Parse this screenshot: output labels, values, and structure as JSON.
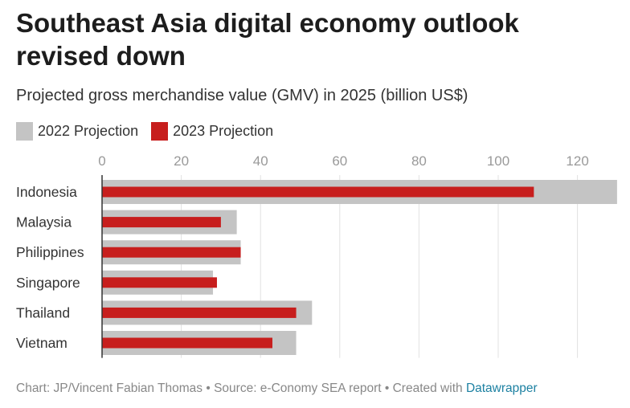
{
  "chart_data": {
    "type": "bar",
    "orientation": "horizontal",
    "title": "Southeast Asia digital economy outlook revised down",
    "subtitle": "Projected gross merchandise value (GMV) in 2025 (billion US$)",
    "categories": [
      "Indonesia",
      "Malaysia",
      "Philippines",
      "Singapore",
      "Thailand",
      "Vietnam"
    ],
    "series": [
      {
        "name": "2022 Projection",
        "color": "#c4c4c4",
        "values": [
          130,
          34,
          35,
          28,
          53,
          49
        ]
      },
      {
        "name": "2023 Projection",
        "color": "#c71e1d",
        "values": [
          109,
          30,
          35,
          29,
          49,
          43
        ]
      }
    ],
    "xlim": [
      0,
      130
    ],
    "xticks": [
      "0",
      "20",
      "40",
      "60",
      "80",
      "100",
      "120"
    ],
    "grid": true,
    "legend_position": "top-left"
  },
  "footer": {
    "text": "Chart: JP/Vincent Fabian Thomas • Source: e-Conomy SEA report • Created with ",
    "link": "Datawrapper"
  }
}
